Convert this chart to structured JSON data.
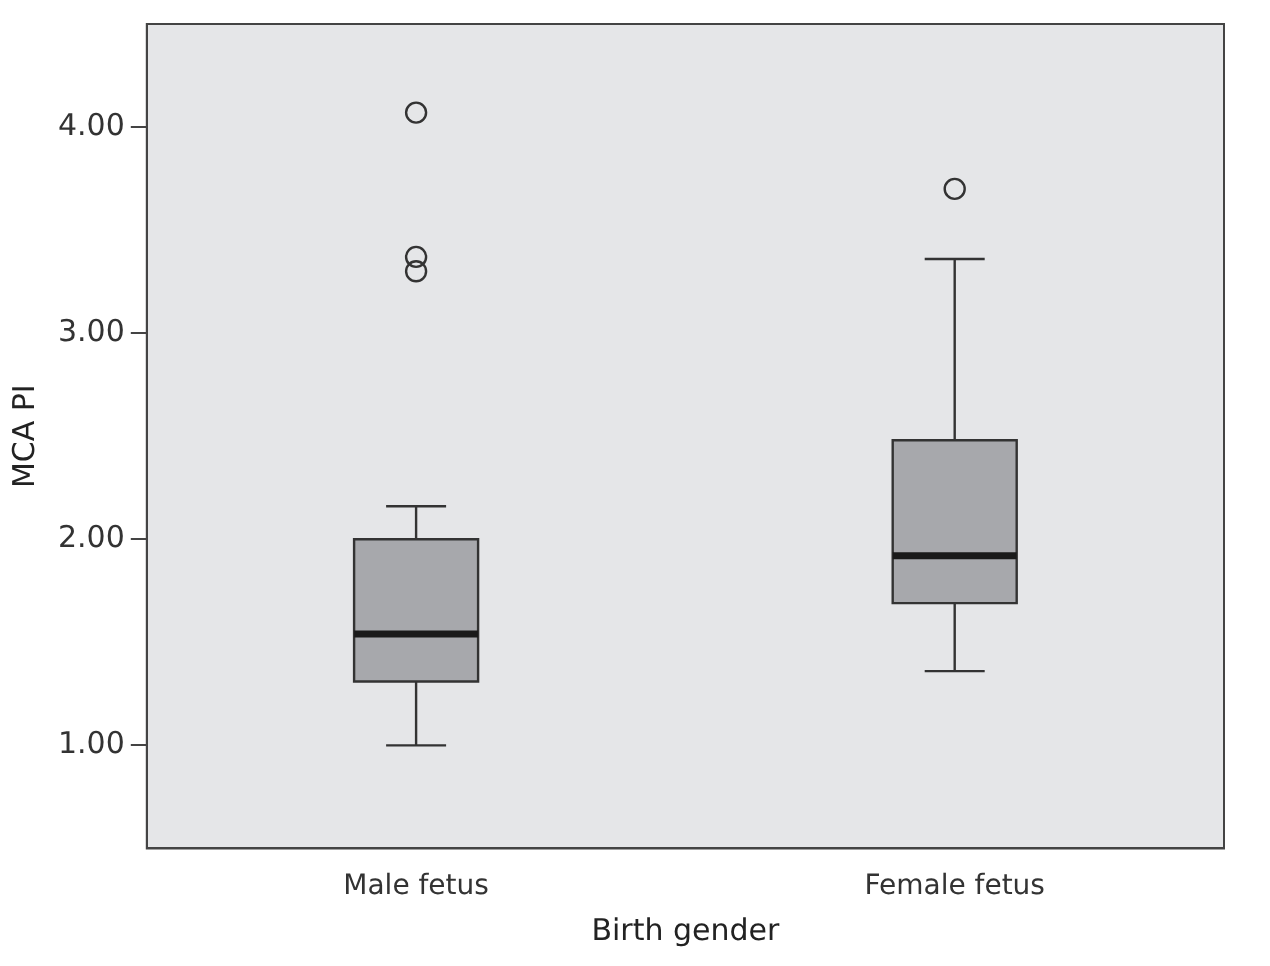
{
  "chart_data": {
    "type": "box",
    "xlabel": "Birth gender",
    "ylabel": "MCA PI",
    "categories": [
      "Male fetus",
      "Female fetus"
    ],
    "boxes": [
      {
        "low": 1.0,
        "q1": 1.31,
        "median": 1.54,
        "q3": 2.0,
        "high": 2.16,
        "outliers": [
          3.3,
          3.37,
          4.07
        ]
      },
      {
        "low": 1.36,
        "q1": 1.69,
        "median": 1.92,
        "q3": 2.48,
        "high": 3.36,
        "outliers": [
          3.7
        ]
      }
    ],
    "color": "#a7a8ac",
    "ylim": [
      0.5,
      4.5
    ],
    "yticks": [
      {
        "value": 1,
        "label": "1.00"
      },
      {
        "value": 2,
        "label": "2.00"
      },
      {
        "value": 3,
        "label": "3.00"
      },
      {
        "value": 4,
        "label": "4.00"
      }
    ],
    "grid": false,
    "legend": false,
    "marker": "circle"
  }
}
